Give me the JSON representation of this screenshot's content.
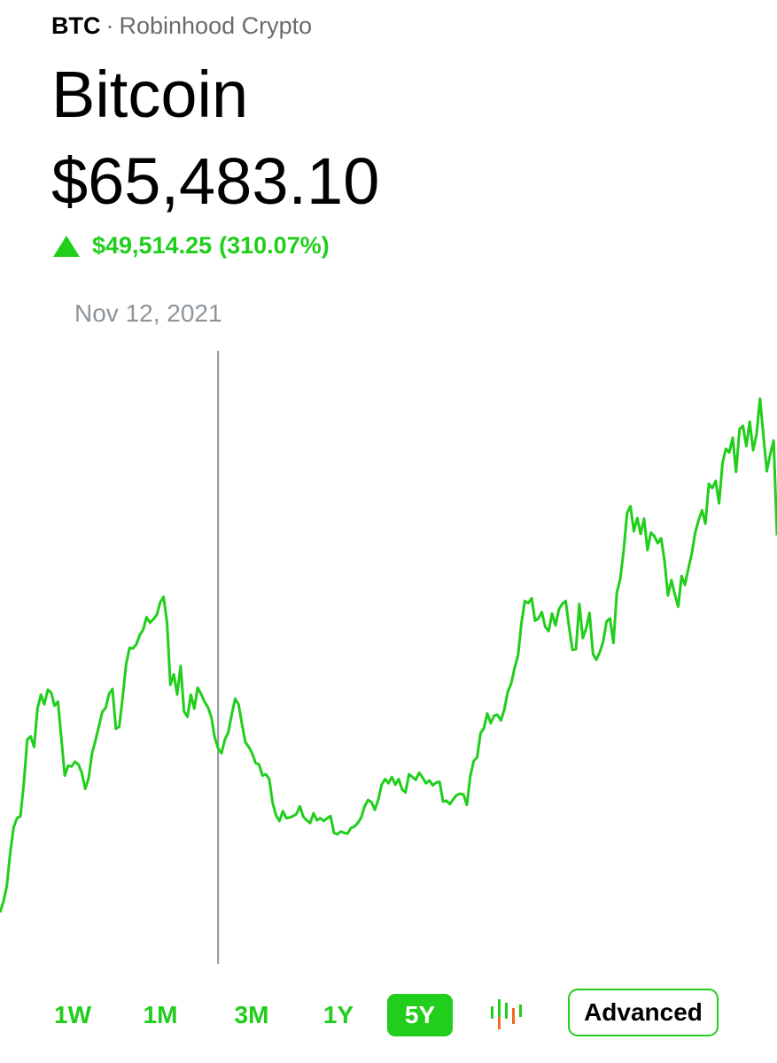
{
  "header": {
    "ticker": "BTC",
    "separator": "·",
    "provider": "Robinhood Crypto"
  },
  "asset": {
    "name": "Bitcoin",
    "price": "$65,483.10"
  },
  "change": {
    "direction": "up",
    "amount": "$49,514.25",
    "percent": "(310.07%)"
  },
  "scrubber": {
    "date": "Nov 12, 2021"
  },
  "colors": {
    "accent": "#21ce1b",
    "scrub_line": "#8d959b",
    "candle_down": "#f36a20"
  },
  "range_selector": {
    "options": [
      {
        "label": "1W"
      },
      {
        "label": "1M"
      },
      {
        "label": "3M"
      },
      {
        "label": "1Y"
      },
      {
        "label": "5Y"
      }
    ],
    "selected": "5Y",
    "chart_type_icon": "candlestick-icon",
    "advanced_label": "Advanced"
  },
  "chart_data": {
    "type": "line",
    "title": "",
    "xlabel": "",
    "ylabel": "",
    "grid": false,
    "axes_visible": false,
    "marker_index": 64,
    "y": [
      16000,
      17500,
      19800,
      24500,
      28200,
      29500,
      29800,
      34500,
      40800,
      41200,
      39700,
      45200,
      47200,
      45800,
      47900,
      47500,
      45600,
      46200,
      41000,
      35600,
      37000,
      36900,
      37600,
      37200,
      36000,
      33700,
      35200,
      38800,
      40600,
      42600,
      44700,
      45300,
      47300,
      48000,
      42300,
      42600,
      46900,
      51500,
      53900,
      53800,
      54400,
      55700,
      56500,
      58300,
      57500,
      58000,
      58600,
      60400,
      61200,
      57600,
      48600,
      50100,
      47200,
      51300,
      44800,
      44000,
      47200,
      45200,
      48200,
      47300,
      46200,
      45400,
      44000,
      41100,
      39500,
      38800,
      40800,
      41800,
      44400,
      46600,
      45800,
      43000,
      40400,
      39700,
      38800,
      37400,
      37200,
      35600,
      35800,
      35100,
      31700,
      29900,
      29100,
      30500,
      29500,
      29600,
      29800,
      30100,
      31200,
      29700,
      29200,
      28800,
      30200,
      29200,
      29500,
      29100,
      29500,
      29800,
      27400,
      27200,
      27600,
      27400,
      27300,
      28100,
      28300,
      28800,
      29600,
      31200,
      32100,
      31800,
      30700,
      32200,
      34300,
      35100,
      34500,
      35400,
      34300,
      35100,
      33600,
      33200,
      35800,
      35400,
      35000,
      36000,
      35300,
      34500,
      34900,
      34200,
      34600,
      34700,
      31900,
      32000,
      31500,
      32200,
      32800,
      33000,
      32900,
      31400,
      35500,
      37700,
      38200,
      41700,
      42400,
      44500,
      43100,
      44200,
      44300,
      43500,
      45100,
      47600,
      48800,
      51000,
      52800,
      57400,
      60600,
      60300,
      61000,
      57800,
      58100,
      59000,
      56900,
      56300,
      58800,
      57100,
      59400,
      60200,
      60600,
      56800,
      53600,
      53700,
      60200,
      55300,
      56700,
      58900,
      53000,
      52200,
      53300,
      54800,
      57700,
      58100,
      54600,
      61800,
      63800,
      67800,
      73200,
      74200,
      70600,
      72500,
      70200,
      72400,
      67900,
      70400,
      69900,
      68900,
      69600,
      66300,
      61400,
      63600,
      61600,
      59800,
      64200,
      62900,
      65300,
      67400,
      70400,
      72200,
      73600,
      71700,
      77400,
      76800,
      77800,
      74600,
      80400,
      82400,
      81900,
      84000,
      79100,
      85200,
      85700,
      82800,
      86300,
      82200,
      84500,
      89600,
      84400,
      79200,
      81600,
      83600,
      70000
    ]
  }
}
